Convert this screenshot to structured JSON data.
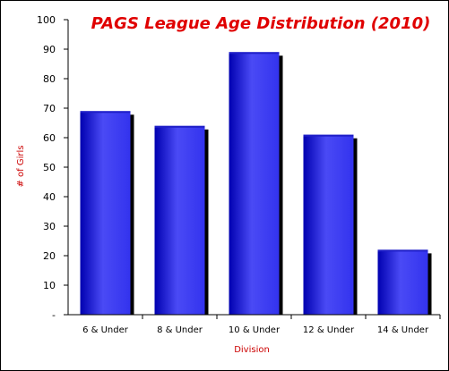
{
  "chart_data": {
    "type": "bar",
    "title": "PAGS League Age Distribution (2010)",
    "xlabel": "Division",
    "ylabel": "# of Girls",
    "categories": [
      "6 & Under",
      "8 & Under",
      "10 & Under",
      "12 & Under",
      "14 & Under"
    ],
    "values": [
      69,
      64,
      89,
      61,
      22
    ],
    "ylim": [
      0,
      100
    ],
    "yticks": [
      0,
      10,
      20,
      30,
      40,
      50,
      60,
      70,
      80,
      90,
      100
    ],
    "ytick_labels": [
      "-",
      "10",
      "20",
      "30",
      "40",
      "50",
      "60",
      "70",
      "80",
      "90",
      "100"
    ],
    "grid": false,
    "legend": "none",
    "bar_style": "3d-cylinder"
  },
  "colors": {
    "title": "#e00000",
    "axis_title": "#cc0000",
    "bar_dark": "#0000b0",
    "bar_mid": "#3333ee",
    "bar_light": "#4a4af5",
    "bar_shadow": "#000000",
    "bar_top": "#2020c8"
  }
}
